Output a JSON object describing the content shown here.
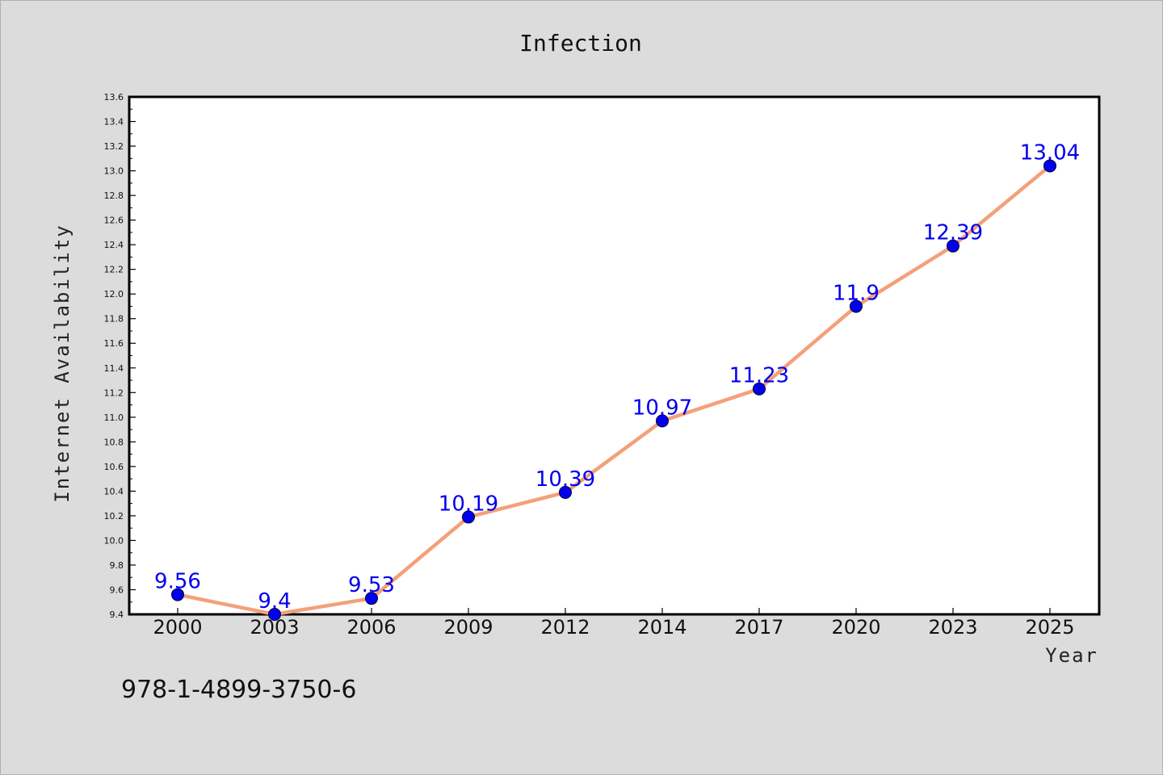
{
  "chart_data": {
    "type": "line",
    "title": "Infection",
    "xlabel": "Year",
    "ylabel": "Internet Availability",
    "categories": [
      "2000",
      "2003",
      "2006",
      "2009",
      "2012",
      "2014",
      "2017",
      "2020",
      "2023",
      "2025"
    ],
    "values": [
      9.56,
      9.4,
      9.53,
      10.19,
      10.39,
      10.97,
      11.23,
      11.9,
      12.39,
      13.04
    ],
    "data_labels": [
      "9.56",
      "9.4",
      "9.53",
      "10.19",
      "10.39",
      "10.97",
      "11.23",
      "11.9",
      "12.39",
      "13.04"
    ],
    "ylim": [
      9.4,
      13.6
    ],
    "yticks": [
      "9.4",
      "9.6",
      "9.8",
      "10.0",
      "10.2",
      "10.4",
      "10.6",
      "10.8",
      "11.0",
      "11.2",
      "11.4",
      "11.6",
      "11.8",
      "12.0",
      "12.2",
      "12.4",
      "12.6",
      "12.8",
      "13.0",
      "13.2",
      "13.4",
      "13.6"
    ],
    "grid": false,
    "legend": "none",
    "line_color": "#f4a07a",
    "marker_color": "#0000ee",
    "label_color": "#0000ee"
  },
  "annotation": "978-1-4899-3750-6"
}
